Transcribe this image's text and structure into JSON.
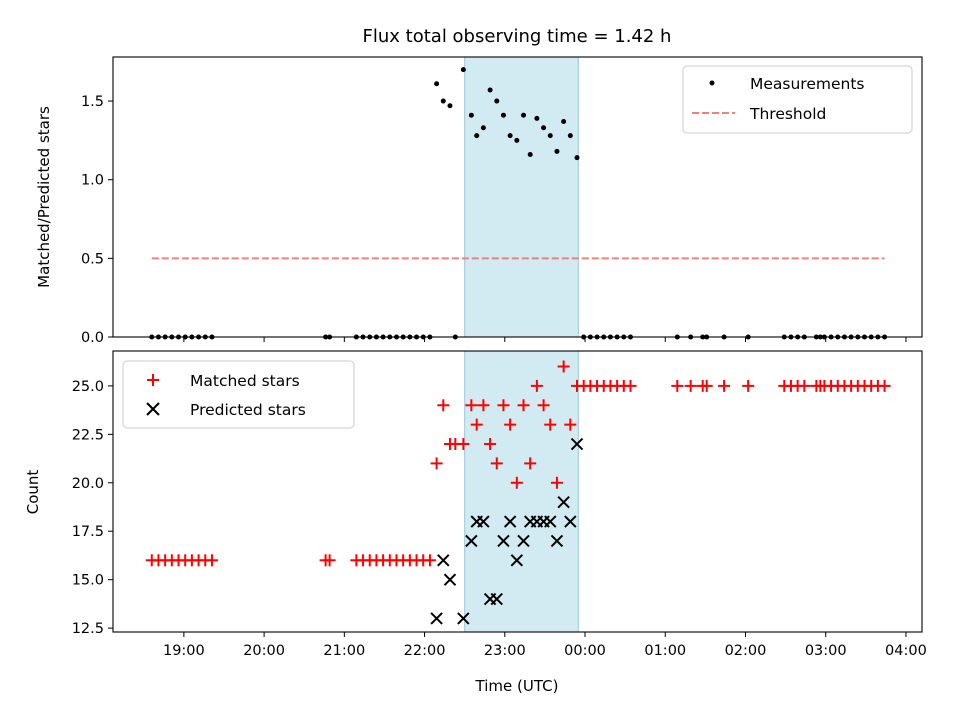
{
  "chart_data": [
    {
      "type": "scatter",
      "panel": "top",
      "title": "Flux total observing time = 1.42 h",
      "xlabel": "",
      "ylabel": "Matched/Predicted stars",
      "xlim": [
        "18:07",
        "04:12"
      ],
      "ylim": [
        0,
        1.78
      ],
      "yticks": [
        0.0,
        0.5,
        1.0,
        1.5
      ],
      "ytick_labels": [
        "0.0",
        "0.5",
        "1.0",
        "1.5"
      ],
      "shaded_region": {
        "x": [
          "22:30",
          "23:55"
        ],
        "color": "#add8e6"
      },
      "legend_position": "top-right",
      "series": [
        {
          "name": "Measurements",
          "marker": "dot",
          "color": "#000000",
          "points": [
            [
              "18:36",
              0
            ],
            [
              "18:41",
              0
            ],
            [
              "18:46",
              0
            ],
            [
              "18:51",
              0
            ],
            [
              "18:56",
              0
            ],
            [
              "19:01",
              0
            ],
            [
              "19:06",
              0
            ],
            [
              "19:11",
              0
            ],
            [
              "19:16",
              0
            ],
            [
              "19:21",
              0
            ],
            [
              "20:46",
              0
            ],
            [
              "20:49",
              0
            ],
            [
              "21:09",
              0
            ],
            [
              "21:14",
              0
            ],
            [
              "21:19",
              0
            ],
            [
              "21:24",
              0
            ],
            [
              "21:29",
              0
            ],
            [
              "21:34",
              0
            ],
            [
              "21:39",
              0
            ],
            [
              "21:44",
              0
            ],
            [
              "21:49",
              0
            ],
            [
              "21:54",
              0
            ],
            [
              "21:59",
              0
            ],
            [
              "22:04",
              0
            ],
            [
              "22:09",
              1.61
            ],
            [
              "22:14",
              1.5
            ],
            [
              "22:19",
              1.47
            ],
            [
              "22:23",
              0
            ],
            [
              "22:29",
              1.7
            ],
            [
              "22:35",
              1.41
            ],
            [
              "22:39",
              1.28
            ],
            [
              "22:44",
              1.33
            ],
            [
              "22:49",
              1.57
            ],
            [
              "22:54",
              1.5
            ],
            [
              "22:59",
              1.41
            ],
            [
              "23:04",
              1.28
            ],
            [
              "23:09",
              1.25
            ],
            [
              "23:14",
              1.41
            ],
            [
              "23:19",
              1.16
            ],
            [
              "23:24",
              1.39
            ],
            [
              "23:29",
              1.33
            ],
            [
              "23:34",
              1.28
            ],
            [
              "23:39",
              1.18
            ],
            [
              "23:44",
              1.37
            ],
            [
              "23:49",
              1.28
            ],
            [
              "23:54",
              1.14
            ],
            [
              "23:59",
              0
            ],
            [
              "00:04",
              0
            ],
            [
              "00:09",
              0
            ],
            [
              "00:14",
              0
            ],
            [
              "00:19",
              0
            ],
            [
              "00:24",
              0
            ],
            [
              "00:29",
              0
            ],
            [
              "00:34",
              0
            ],
            [
              "01:09",
              0
            ],
            [
              "01:19",
              0
            ],
            [
              "01:28",
              0
            ],
            [
              "01:31",
              0
            ],
            [
              "01:44",
              0
            ],
            [
              "02:02",
              0
            ],
            [
              "02:29",
              0
            ],
            [
              "02:34",
              0
            ],
            [
              "02:39",
              0
            ],
            [
              "02:44",
              0
            ],
            [
              "02:53",
              0
            ],
            [
              "02:56",
              0
            ],
            [
              "02:59",
              0
            ],
            [
              "03:04",
              0
            ],
            [
              "03:09",
              0
            ],
            [
              "03:14",
              0
            ],
            [
              "03:19",
              0
            ],
            [
              "03:24",
              0
            ],
            [
              "03:29",
              0
            ],
            [
              "03:34",
              0
            ],
            [
              "03:39",
              0
            ],
            [
              "03:44",
              0
            ]
          ]
        },
        {
          "name": "Threshold",
          "line": "dashed",
          "color": "#f08080",
          "points": [
            [
              "18:36",
              0.5
            ],
            [
              "03:44",
              0.5
            ]
          ]
        }
      ]
    },
    {
      "type": "scatter",
      "panel": "bottom",
      "title": "",
      "xlabel": "Time (UTC)",
      "ylabel": "Count",
      "xlim": [
        "18:07",
        "04:12"
      ],
      "ylim": [
        12.3,
        26.8
      ],
      "yticks": [
        12.5,
        15.0,
        17.5,
        20.0,
        22.5,
        25.0
      ],
      "ytick_labels": [
        "12.5",
        "15.0",
        "17.5",
        "20.0",
        "22.5",
        "25.0"
      ],
      "xticks": [
        "19:00",
        "20:00",
        "21:00",
        "22:00",
        "23:00",
        "00:00",
        "01:00",
        "02:00",
        "03:00",
        "04:00"
      ],
      "shaded_region": {
        "x": [
          "22:30",
          "23:55"
        ],
        "color": "#add8e6"
      },
      "legend_position": "top-left",
      "series": [
        {
          "name": "Matched stars",
          "marker": "plus",
          "color": "#ff0000",
          "points": [
            [
              "18:36",
              16
            ],
            [
              "18:41",
              16
            ],
            [
              "18:46",
              16
            ],
            [
              "18:51",
              16
            ],
            [
              "18:56",
              16
            ],
            [
              "19:01",
              16
            ],
            [
              "19:06",
              16
            ],
            [
              "19:11",
              16
            ],
            [
              "19:16",
              16
            ],
            [
              "19:21",
              16
            ],
            [
              "20:46",
              16
            ],
            [
              "20:49",
              16
            ],
            [
              "21:09",
              16
            ],
            [
              "21:14",
              16
            ],
            [
              "21:19",
              16
            ],
            [
              "21:24",
              16
            ],
            [
              "21:29",
              16
            ],
            [
              "21:34",
              16
            ],
            [
              "21:39",
              16
            ],
            [
              "21:44",
              16
            ],
            [
              "21:49",
              16
            ],
            [
              "21:54",
              16
            ],
            [
              "21:59",
              16
            ],
            [
              "22:04",
              16
            ],
            [
              "22:09",
              21
            ],
            [
              "22:14",
              24
            ],
            [
              "22:19",
              22
            ],
            [
              "22:23",
              22
            ],
            [
              "22:29",
              22
            ],
            [
              "22:35",
              24
            ],
            [
              "22:39",
              23
            ],
            [
              "22:44",
              24
            ],
            [
              "22:49",
              22
            ],
            [
              "22:54",
              21
            ],
            [
              "22:59",
              24
            ],
            [
              "23:04",
              23
            ],
            [
              "23:09",
              20
            ],
            [
              "23:14",
              24
            ],
            [
              "23:19",
              21
            ],
            [
              "23:24",
              25
            ],
            [
              "23:29",
              24
            ],
            [
              "23:34",
              23
            ],
            [
              "23:39",
              20
            ],
            [
              "23:44",
              26
            ],
            [
              "23:49",
              23
            ],
            [
              "23:54",
              25
            ],
            [
              "23:59",
              25
            ],
            [
              "00:04",
              25
            ],
            [
              "00:09",
              25
            ],
            [
              "00:14",
              25
            ],
            [
              "00:19",
              25
            ],
            [
              "00:24",
              25
            ],
            [
              "00:29",
              25
            ],
            [
              "00:34",
              25
            ],
            [
              "01:09",
              25
            ],
            [
              "01:19",
              25
            ],
            [
              "01:28",
              25
            ],
            [
              "01:31",
              25
            ],
            [
              "01:44",
              25
            ],
            [
              "02:02",
              25
            ],
            [
              "02:29",
              25
            ],
            [
              "02:34",
              25
            ],
            [
              "02:39",
              25
            ],
            [
              "02:44",
              25
            ],
            [
              "02:53",
              25
            ],
            [
              "02:56",
              25
            ],
            [
              "02:59",
              25
            ],
            [
              "03:04",
              25
            ],
            [
              "03:09",
              25
            ],
            [
              "03:14",
              25
            ],
            [
              "03:19",
              25
            ],
            [
              "03:24",
              25
            ],
            [
              "03:29",
              25
            ],
            [
              "03:34",
              25
            ],
            [
              "03:39",
              25
            ],
            [
              "03:44",
              25
            ]
          ]
        },
        {
          "name": "Predicted stars",
          "marker": "x",
          "color": "#000000",
          "points": [
            [
              "22:09",
              13
            ],
            [
              "22:14",
              16
            ],
            [
              "22:19",
              15
            ],
            [
              "22:29",
              13
            ],
            [
              "22:35",
              17
            ],
            [
              "22:39",
              18
            ],
            [
              "22:44",
              18
            ],
            [
              "22:49",
              14
            ],
            [
              "22:54",
              14
            ],
            [
              "22:59",
              17
            ],
            [
              "23:04",
              18
            ],
            [
              "23:09",
              16
            ],
            [
              "23:14",
              17
            ],
            [
              "23:19",
              18
            ],
            [
              "23:24",
              18
            ],
            [
              "23:29",
              18
            ],
            [
              "23:34",
              18
            ],
            [
              "23:39",
              17
            ],
            [
              "23:44",
              19
            ],
            [
              "23:49",
              18
            ],
            [
              "23:54",
              22
            ]
          ]
        }
      ]
    }
  ]
}
